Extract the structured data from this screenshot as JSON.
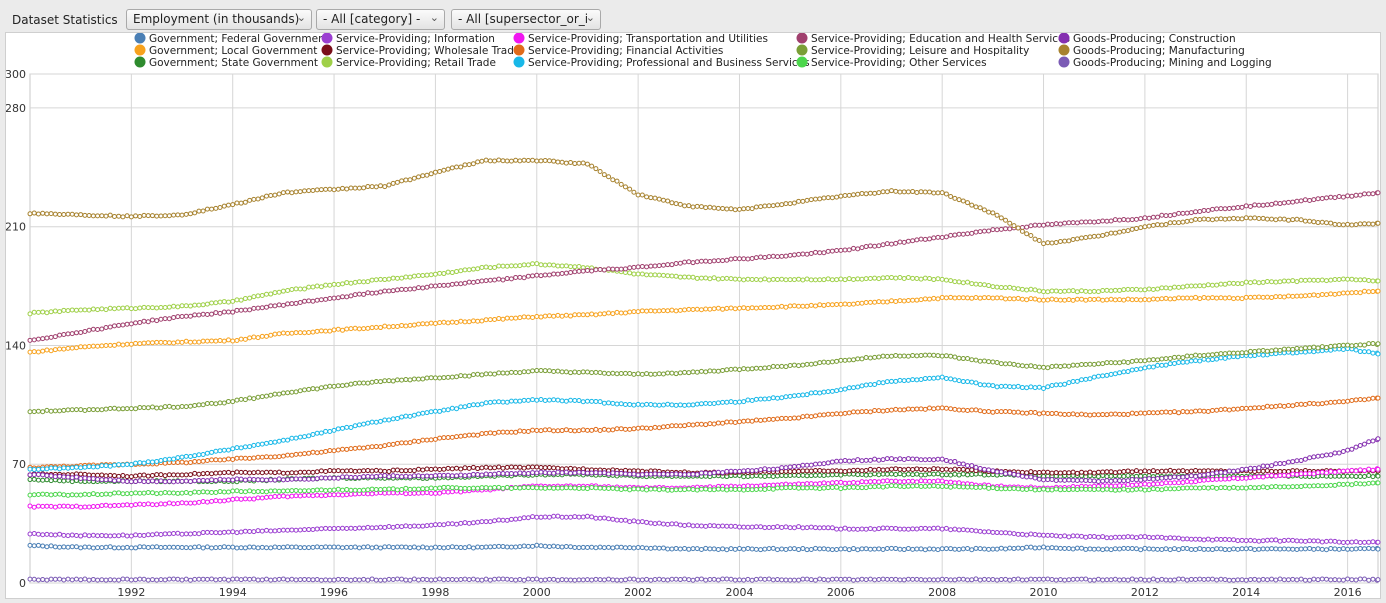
{
  "toolbar": {
    "title": "Dataset Statistics",
    "measure_select": "Employment (in thousands)",
    "category_select": "- All [category] -",
    "supersector_select": "- All [supersector_or_i"
  },
  "chart_data": {
    "type": "line",
    "title": "",
    "xlabel": "",
    "ylabel": "",
    "xlim": [
      1990.0,
      2016.6
    ],
    "ylim": [
      0,
      300
    ],
    "x_ticks": [
      1992,
      1994,
      1996,
      1998,
      2000,
      2002,
      2004,
      2006,
      2008,
      2010,
      2012,
      2014,
      2016
    ],
    "y_ticks": [
      0,
      70,
      140,
      210,
      280,
      300
    ],
    "grid": true,
    "legend_position": "top",
    "markers": "hollow-circle",
    "x": [
      1990,
      1991,
      1992,
      1993,
      1994,
      1995,
      1996,
      1997,
      1998,
      1999,
      2000,
      2001,
      2002,
      2003,
      2004,
      2005,
      2006,
      2007,
      2008,
      2009,
      2010,
      2011,
      2012,
      2013,
      2014,
      2015,
      2016,
      2016.6
    ],
    "series": [
      {
        "name": "Government; Federal Government",
        "color": "#4a7fb5",
        "values": [
          22,
          21,
          21,
          21,
          21,
          21,
          21,
          21,
          21,
          21,
          22,
          21,
          21,
          20,
          20,
          20,
          20,
          20,
          20,
          20,
          21,
          20,
          20,
          20,
          20,
          20,
          20,
          20
        ]
      },
      {
        "name": "Government; Local Government",
        "color": "#f7a21e",
        "values": [
          136,
          139,
          141,
          142,
          143,
          147,
          149,
          151,
          153,
          155,
          157,
          158,
          160,
          161,
          162,
          163,
          164,
          166,
          168,
          168,
          167,
          167,
          167,
          168,
          168,
          169,
          171,
          172
        ]
      },
      {
        "name": "Government; State Government",
        "color": "#2e8b2e",
        "values": [
          61,
          60,
          60,
          60,
          60,
          61,
          62,
          62,
          62,
          63,
          64,
          64,
          63,
          63,
          63,
          63,
          64,
          64,
          64,
          64,
          63,
          63,
          63,
          63,
          63,
          63,
          63,
          63
        ]
      },
      {
        "name": "Service-Providing; Information",
        "color": "#9b3fd1",
        "values": [
          29,
          28,
          28,
          29,
          30,
          31,
          32,
          33,
          34,
          36,
          39,
          39,
          36,
          34,
          33,
          33,
          32,
          32,
          32,
          30,
          28,
          27,
          27,
          26,
          25,
          25,
          24,
          24
        ]
      },
      {
        "name": "Service-Providing; Wholesale Trade",
        "color": "#7a0f1a",
        "values": [
          64,
          64,
          63,
          64,
          65,
          65,
          66,
          66,
          67,
          68,
          68,
          67,
          66,
          65,
          65,
          66,
          66,
          67,
          67,
          66,
          65,
          65,
          66,
          66,
          66,
          66,
          66,
          66
        ]
      },
      {
        "name": "Service-Providing; Retail Trade",
        "color": "#9fd048",
        "values": [
          159,
          161,
          162,
          163,
          166,
          172,
          176,
          179,
          182,
          186,
          188,
          186,
          182,
          180,
          179,
          179,
          179,
          180,
          179,
          175,
          172,
          172,
          173,
          175,
          177,
          178,
          179,
          178
        ]
      },
      {
        "name": "Service-Providing; Transportation and Utilities",
        "color": "#f016f0",
        "values": [
          45,
          45,
          46,
          47,
          49,
          51,
          52,
          53,
          53,
          55,
          57,
          57,
          56,
          56,
          57,
          58,
          59,
          60,
          60,
          57,
          56,
          57,
          58,
          60,
          62,
          64,
          66,
          67
        ]
      },
      {
        "name": "Service-Providing; Financial Activities",
        "color": "#e06b1a",
        "values": [
          68,
          69,
          70,
          71,
          73,
          75,
          78,
          81,
          85,
          88,
          90,
          90,
          91,
          93,
          95,
          97,
          100,
          102,
          103,
          101,
          100,
          99,
          100,
          101,
          103,
          105,
          107,
          109
        ]
      },
      {
        "name": "Service-Providing; Professional and Business Services",
        "color": "#18b8e8",
        "values": [
          67,
          68,
          70,
          74,
          79,
          84,
          90,
          96,
          101,
          106,
          108,
          107,
          105,
          105,
          107,
          110,
          114,
          119,
          121,
          116,
          115,
          121,
          127,
          131,
          134,
          136,
          138,
          135
        ]
      },
      {
        "name": "Service-Providing; Education and Health Services",
        "color": "#a0406e",
        "values": [
          143,
          148,
          153,
          157,
          160,
          164,
          168,
          172,
          175,
          178,
          181,
          184,
          186,
          189,
          191,
          193,
          196,
          200,
          204,
          208,
          211,
          213,
          215,
          219,
          222,
          225,
          228,
          230
        ]
      },
      {
        "name": "Service-Providing; Leisure and Hospitality",
        "color": "#7a9e37",
        "values": [
          101,
          102,
          103,
          104,
          107,
          112,
          116,
          119,
          121,
          123,
          125,
          124,
          123,
          124,
          126,
          128,
          131,
          134,
          134,
          130,
          127,
          129,
          131,
          134,
          136,
          138,
          140,
          141
        ]
      },
      {
        "name": "Service-Providing; Other Services",
        "color": "#4cd64c",
        "values": [
          52,
          52,
          53,
          53,
          54,
          54,
          55,
          55,
          56,
          56,
          56,
          56,
          55,
          55,
          55,
          56,
          56,
          57,
          57,
          56,
          55,
          55,
          55,
          56,
          56,
          57,
          58,
          59
        ]
      },
      {
        "name": "Goods-Producing; Construction",
        "color": "#8530b0",
        "values": [
          64,
          62,
          60,
          60,
          61,
          61,
          62,
          63,
          63,
          64,
          65,
          65,
          64,
          64,
          66,
          68,
          72,
          73,
          73,
          66,
          61,
          60,
          61,
          63,
          67,
          72,
          78,
          85
        ]
      },
      {
        "name": "Goods-Producing; Manufacturing",
        "color": "#a7822e",
        "values": [
          218,
          217,
          216,
          217,
          223,
          230,
          232,
          234,
          242,
          249,
          249,
          247,
          229,
          222,
          220,
          224,
          228,
          231,
          230,
          218,
          200,
          204,
          210,
          214,
          215,
          214,
          211,
          212
        ]
      },
      {
        "name": "Goods-Producing; Mining and Logging",
        "color": "#7b5bb5",
        "values": [
          2,
          2,
          2,
          2,
          2,
          2,
          2,
          2,
          2,
          2,
          2,
          2,
          2,
          2,
          2,
          2,
          2,
          2,
          2,
          2,
          2,
          2,
          2,
          2,
          2,
          2,
          2,
          2
        ]
      }
    ]
  }
}
